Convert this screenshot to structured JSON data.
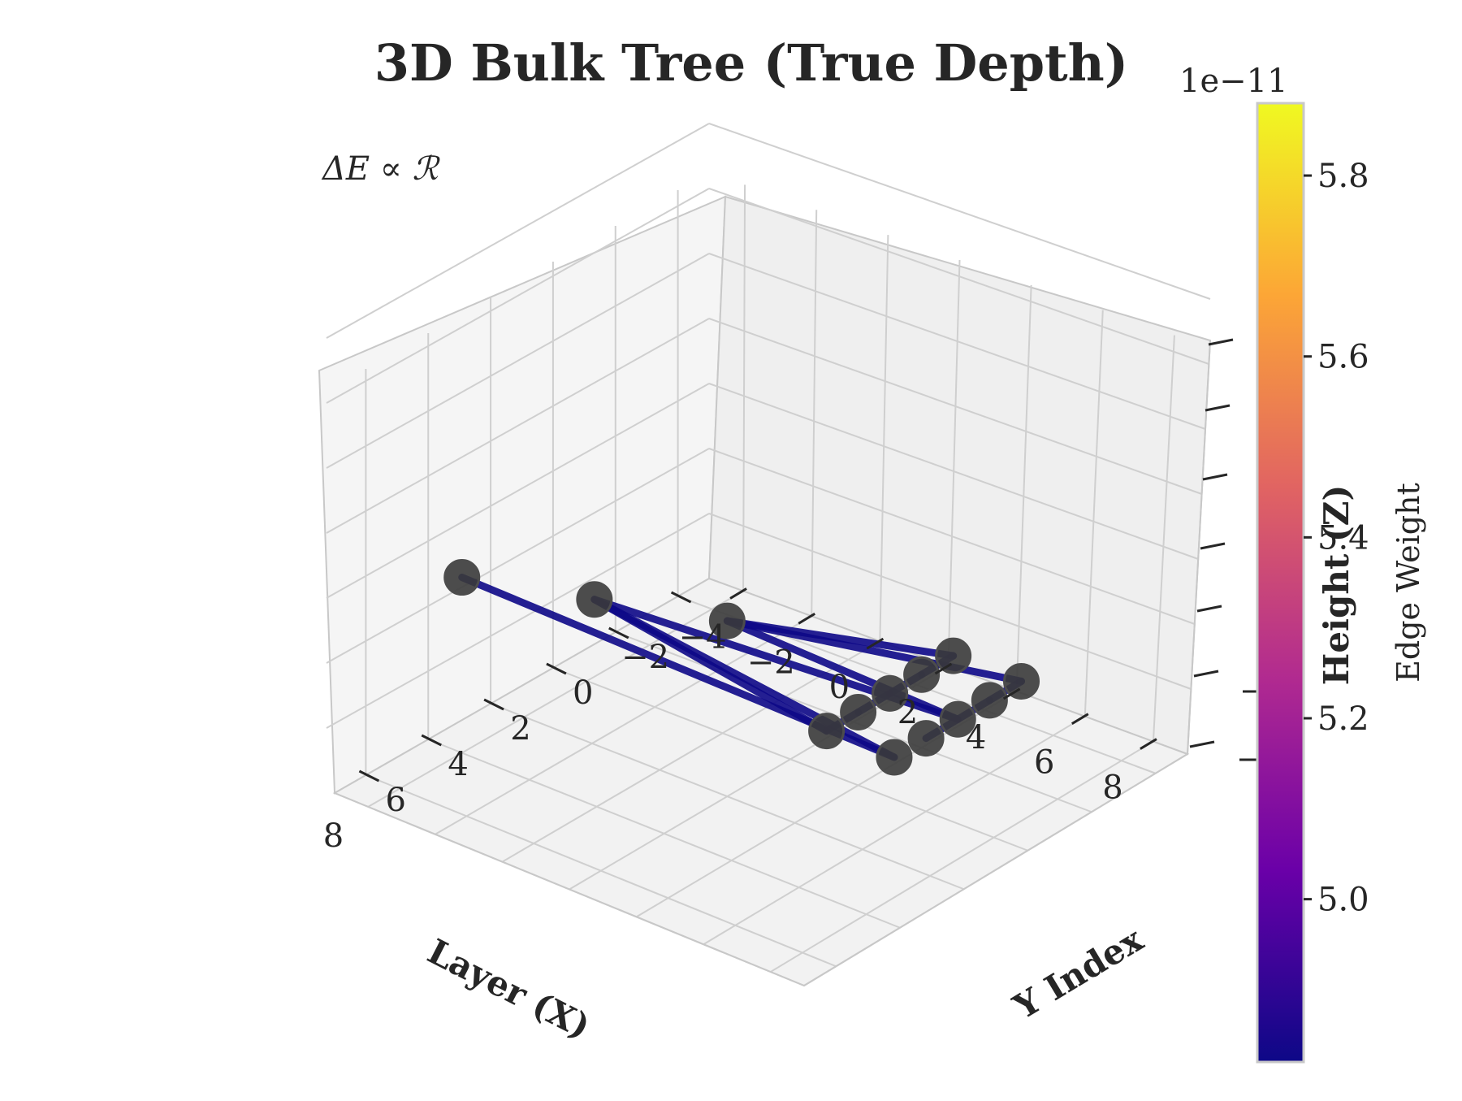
{
  "chart_data": {
    "type": "scatter",
    "title": "3D Bulk Tree (True Depth)",
    "annotation": "ΔE ∝ ℛ",
    "xlabel": "Layer (X)",
    "ylabel": "Y Index",
    "zlabel": "Height (Z)",
    "x_ticks": [
      "8",
      "6",
      "4",
      "2",
      "0",
      "−2"
    ],
    "y_ticks": [
      "−4",
      "−2",
      "0",
      "2",
      "4",
      "6",
      "8"
    ],
    "xlim": [
      -3,
      9
    ],
    "ylim": [
      -5,
      9
    ],
    "grid": true,
    "nodes": [
      {
        "x": 6,
        "y": -4,
        "z": 2
      },
      {
        "x": 5,
        "y": -1,
        "z": 2
      },
      {
        "x": 4,
        "y": 2,
        "z": 2
      },
      {
        "x": 3,
        "y": 4,
        "z": 0
      },
      {
        "x": 3,
        "y": 6,
        "z": 0
      },
      {
        "x": 2,
        "y": 4,
        "z": 0
      },
      {
        "x": 2,
        "y": 6,
        "z": 0
      },
      {
        "x": 1,
        "y": 4,
        "z": 0
      },
      {
        "x": 1,
        "y": 6,
        "z": 0
      },
      {
        "x": 0,
        "y": 4,
        "z": 0
      },
      {
        "x": 0,
        "y": 6,
        "z": 0
      },
      {
        "x": -1,
        "y": 4,
        "z": 0
      },
      {
        "x": -1,
        "y": 6,
        "z": 0
      }
    ],
    "edges": [
      [
        0,
        4
      ],
      [
        1,
        4
      ],
      [
        1,
        3
      ],
      [
        1,
        8
      ],
      [
        2,
        8
      ],
      [
        2,
        12
      ],
      [
        2,
        11
      ],
      [
        3,
        5
      ],
      [
        5,
        7
      ],
      [
        7,
        9
      ],
      [
        6,
        10
      ],
      [
        9,
        11
      ],
      [
        10,
        12
      ]
    ],
    "edge_weight_color": "#0d0887",
    "node_color": "#3a3a3a",
    "colorbar": {
      "label": "Edge Weight",
      "offset_text": "1e−11",
      "range": [
        4.82,
        5.88
      ],
      "ticks": [
        "5.0",
        "5.2",
        "5.4",
        "5.6",
        "5.8"
      ],
      "tick_values": [
        5.0,
        5.2,
        5.4,
        5.6,
        5.8
      ],
      "colormap": [
        "#0d0887",
        "#6a00a8",
        "#b12a90",
        "#e16462",
        "#fca636",
        "#f0f921"
      ]
    }
  }
}
